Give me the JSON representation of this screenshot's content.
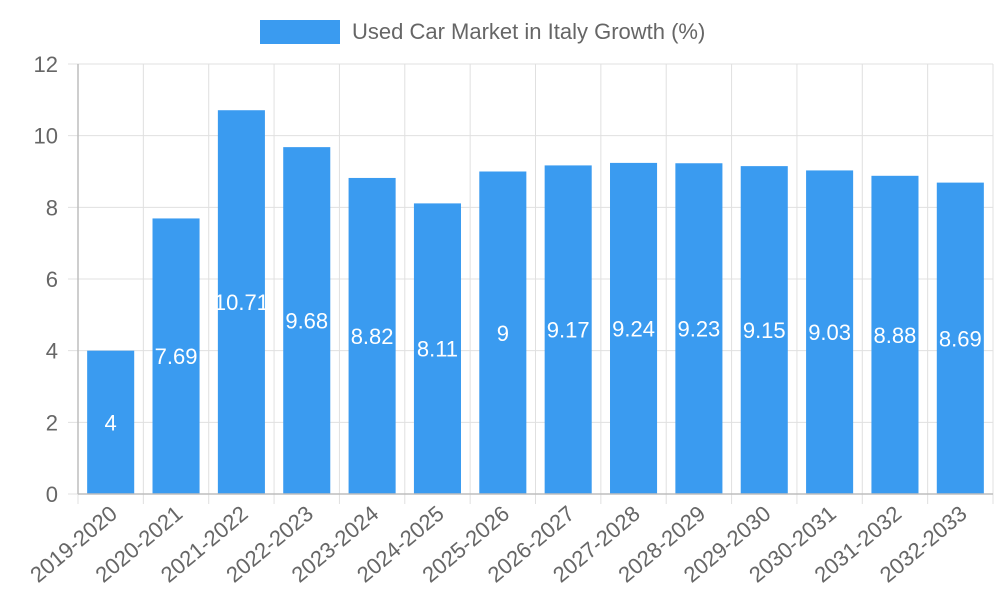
{
  "chart_data": {
    "type": "bar",
    "title": "",
    "legend": {
      "label": "Used Car Market in Italy Growth (%)",
      "position": "top"
    },
    "series": [
      {
        "name": "Used Car Market in Italy Growth (%)",
        "color": "#3a9bf0",
        "values": [
          4,
          7.69,
          10.71,
          9.68,
          8.82,
          8.11,
          9,
          9.17,
          9.24,
          9.23,
          9.15,
          9.03,
          8.88,
          8.69
        ]
      }
    ],
    "categories": [
      "2019-2020",
      "2020-2021",
      "2021-2022",
      "2022-2023",
      "2023-2024",
      "2024-2025",
      "2025-2026",
      "2026-2027",
      "2027-2028",
      "2028-2029",
      "2029-2030",
      "2030-2031",
      "2031-2032",
      "2032-2033"
    ],
    "data_labels": [
      "4",
      "7.69",
      "10.71",
      "9.68",
      "8.82",
      "8.11",
      "9",
      "9.17",
      "9.24",
      "9.23",
      "9.15",
      "9.03",
      "8.88",
      "8.69"
    ],
    "y_ticks": [
      "0",
      "2",
      "4",
      "6",
      "8",
      "10",
      "12"
    ],
    "ylim": [
      0,
      12
    ],
    "xlabel": "",
    "ylabel": "",
    "grid": true
  }
}
